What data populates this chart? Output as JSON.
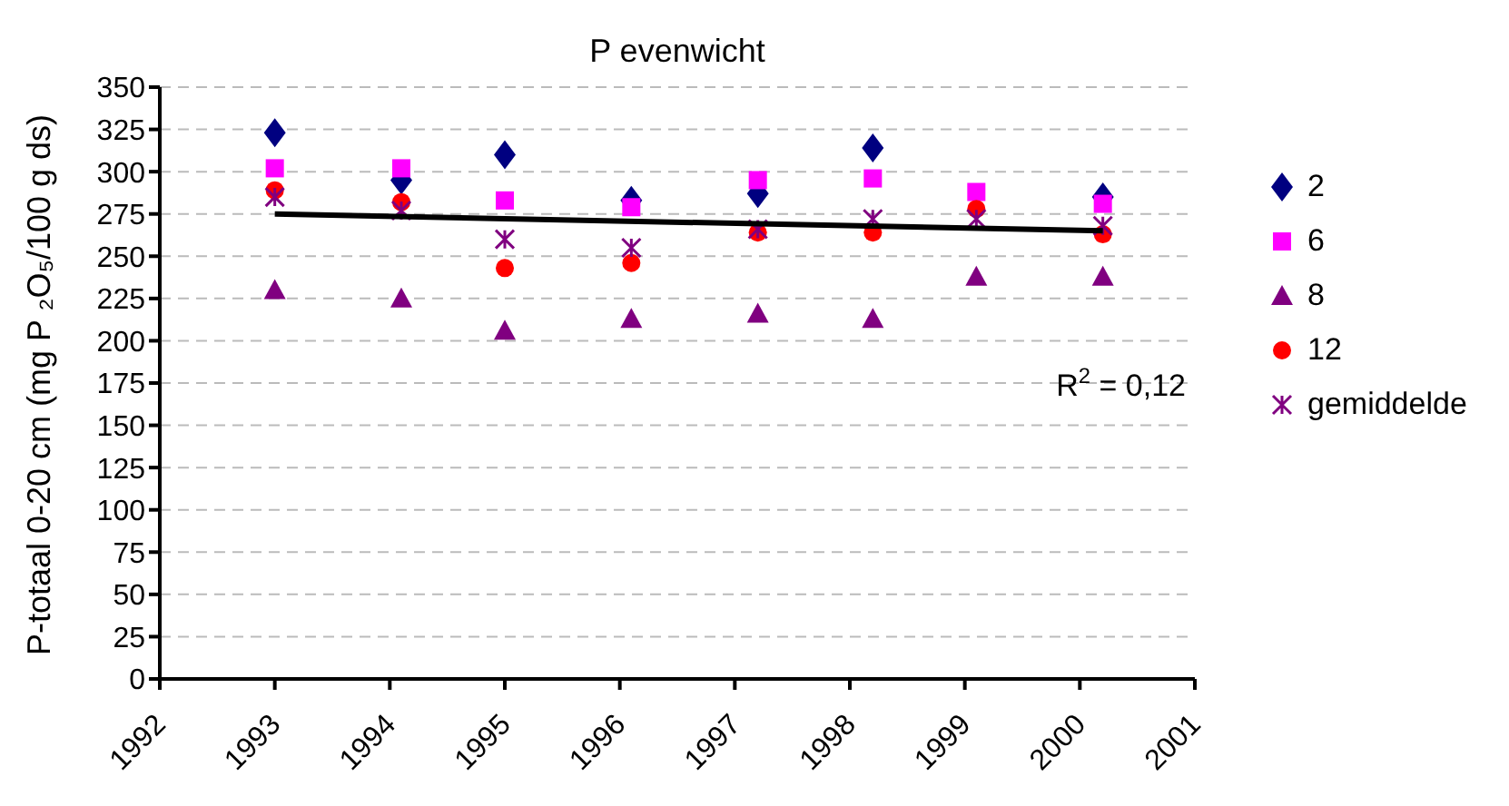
{
  "chart_data": {
    "type": "scatter",
    "title": "P evenwicht",
    "ylabel": "P-totaal 0-20 cm (mg P ₂O₅/100 g ds)",
    "x": [
      1993.0,
      1994.1,
      1995.0,
      1996.1,
      1997.2,
      1998.2,
      1999.1,
      2000.2
    ],
    "series": [
      {
        "name": "2",
        "color": "#000080",
        "marker": "diamond",
        "values": [
          323,
          295,
          310,
          283,
          287,
          314,
          null,
          285
        ]
      },
      {
        "name": "6",
        "color": "#ff00ff",
        "marker": "square",
        "values": [
          302,
          302,
          283,
          279,
          295,
          296,
          288,
          281
        ]
      },
      {
        "name": "8",
        "color": "#800080",
        "marker": "triangle",
        "values": [
          230,
          225,
          206,
          213,
          216,
          213,
          238,
          238
        ]
      },
      {
        "name": "12",
        "color": "#ff0000",
        "marker": "circle",
        "values": [
          289,
          282,
          243,
          246,
          264,
          264,
          278,
          263
        ]
      },
      {
        "name": "gemiddelde",
        "color": "#800080",
        "marker": "cross",
        "values": [
          285,
          277,
          260,
          255,
          266,
          272,
          272,
          268
        ]
      },
      {
        "type": "line",
        "color": "#000000",
        "x": [
          1993.0,
          2000.2
        ],
        "values": [
          275,
          265
        ]
      }
    ],
    "annotations": [
      "R$^{2}$ = 0,12"
    ],
    "xlim": [
      1992,
      2001
    ],
    "xticks": [
      1992,
      1993,
      1994,
      1995,
      1996,
      1997,
      1998,
      1999,
      2000,
      2001
    ],
    "ylim": [
      0,
      350
    ],
    "yticks": [
      0,
      25,
      50,
      75,
      100,
      125,
      150,
      175,
      200,
      225,
      250,
      275,
      300,
      325,
      350
    ],
    "grid": "y",
    "legend": "right"
  }
}
